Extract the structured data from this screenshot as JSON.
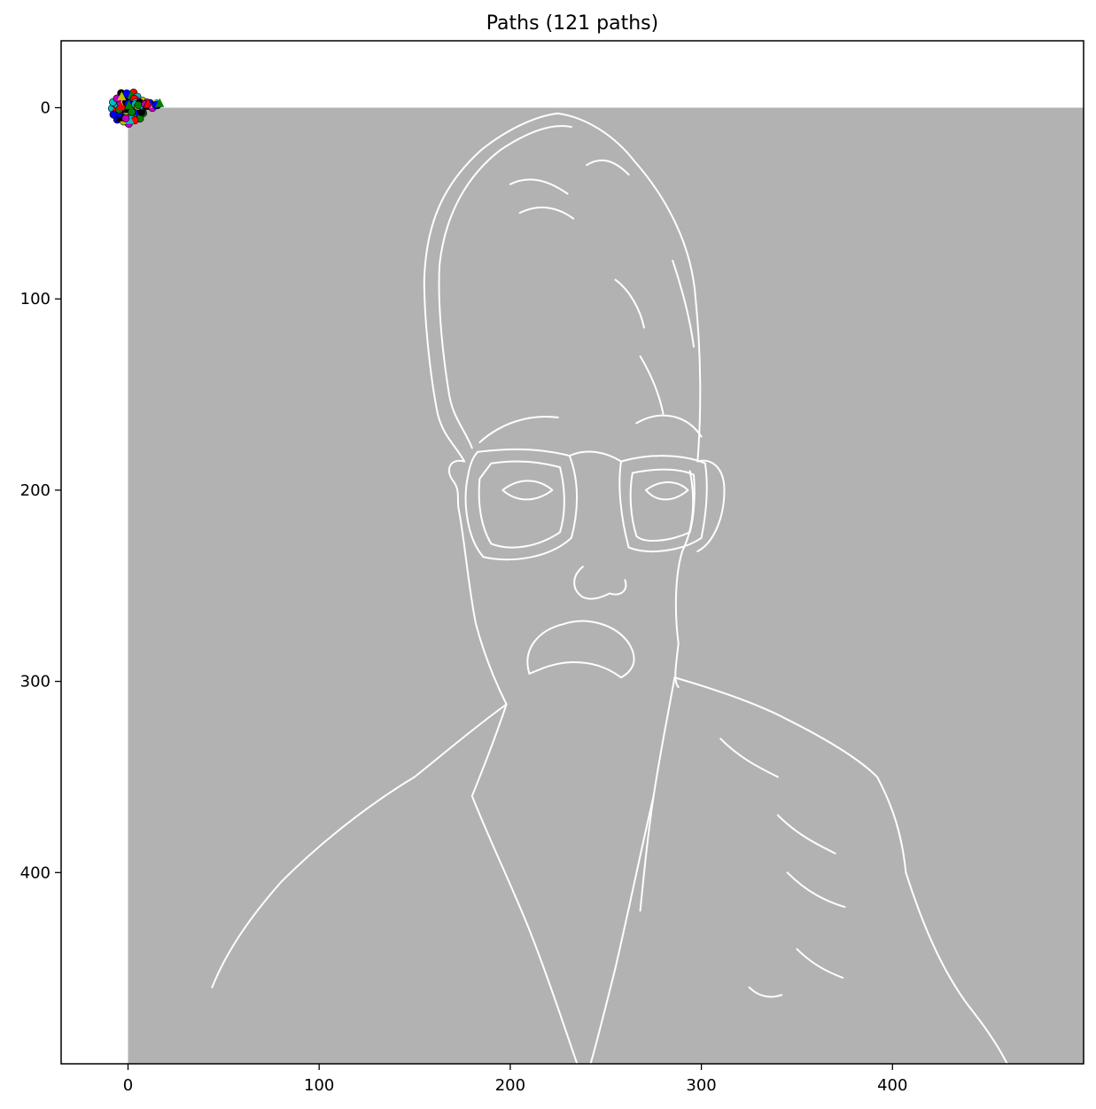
{
  "chart_data": {
    "type": "scatter",
    "title": "Paths (121 paths)",
    "xlabel": "",
    "ylabel": "",
    "xlim": [
      -35,
      500
    ],
    "ylim": [
      500,
      -35
    ],
    "y_inverted": true,
    "grid": false,
    "x_ticks": [
      0,
      100,
      200,
      300,
      400
    ],
    "y_ticks": [
      0,
      100,
      200,
      300,
      400
    ],
    "image": {
      "extent": {
        "x": [
          0,
          500
        ],
        "y": [
          0,
          500
        ]
      },
      "background_color": "#b2b2b2",
      "edge_color": "#ffffff",
      "content": "edge-detected portrait of a man with glasses and a mustache"
    },
    "path_markers": {
      "count": 121,
      "center": [
        0,
        0
      ],
      "colors": [
        "#0000ff",
        "#008000",
        "#ff0000",
        "#00bfbf",
        "#bf00bf",
        "#bfbf00",
        "#000000"
      ]
    }
  }
}
